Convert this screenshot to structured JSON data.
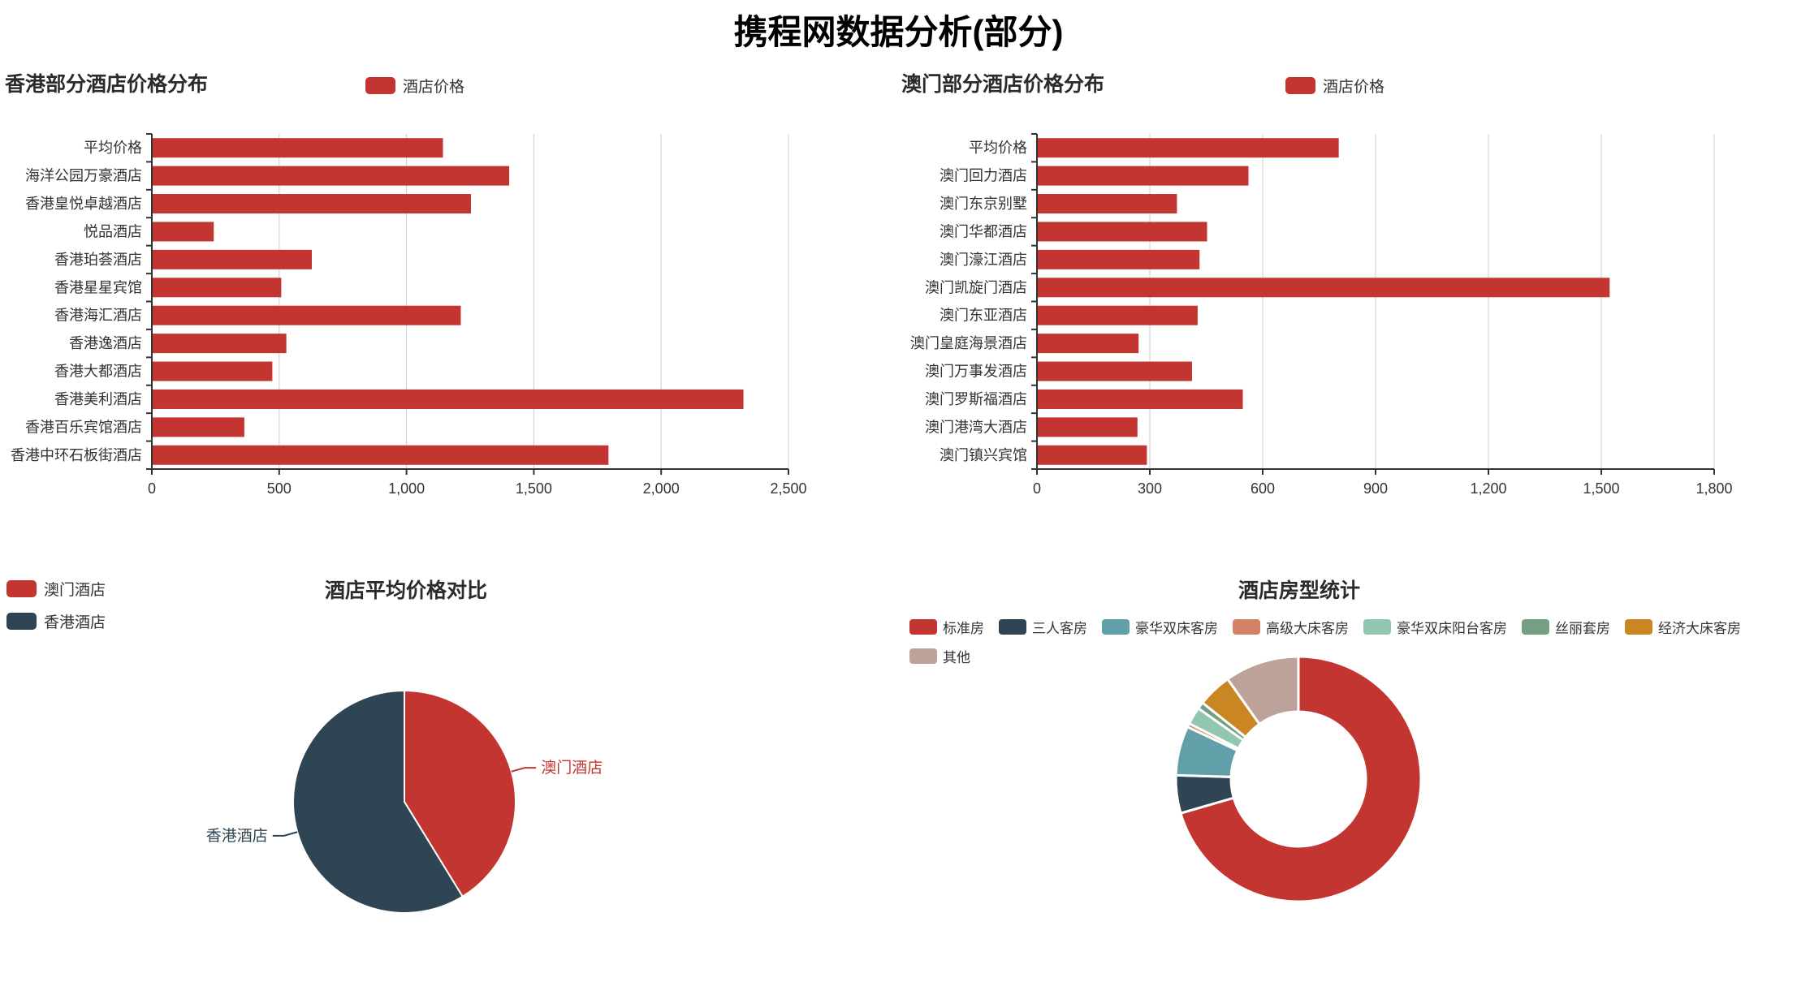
{
  "page": {
    "title": "携程网数据分析(部分)"
  },
  "chart_data": [
    {
      "type": "bar",
      "orientation": "horizontal",
      "title": "香港部分酒店价格分布",
      "legend": [
        "酒店价格"
      ],
      "legend_color": "#c23531",
      "bar_color": "#c23531",
      "categories": [
        "平均价格",
        "海洋公园万豪酒店",
        "香港皇悦卓越酒店",
        "悦品酒店",
        "香港珀荟酒店",
        "香港星星宾馆",
        "香港海汇酒店",
        "香港逸酒店",
        "香港大都酒店",
        "香港美利酒店",
        "香港百乐宾馆酒店",
        "香港中环石板街酒店"
      ],
      "values": [
        1140,
        1400,
        1250,
        240,
        625,
        505,
        1210,
        525,
        470,
        2320,
        360,
        1790
      ],
      "xlabel": "",
      "ylabel": "",
      "xlim": [
        0,
        2500
      ],
      "xticks": [
        0,
        500,
        1000,
        1500,
        2000,
        2500
      ],
      "grid": "vertical-lines"
    },
    {
      "type": "bar",
      "orientation": "horizontal",
      "title": "澳门部分酒店价格分布",
      "legend": [
        "酒店价格"
      ],
      "legend_color": "#c23531",
      "bar_color": "#c23531",
      "categories": [
        "平均价格",
        "澳门回力酒店",
        "澳门东京别墅",
        "澳门华都酒店",
        "澳门濠江酒店",
        "澳门凯旋门酒店",
        "澳门东亚酒店",
        "澳门皇庭海景酒店",
        "澳门万事发酒店",
        "澳门罗斯福酒店",
        "澳门港湾大酒店",
        "澳门镇兴宾馆"
      ],
      "values": [
        800,
        560,
        370,
        450,
        430,
        1520,
        425,
        268,
        410,
        545,
        265,
        290
      ],
      "xlabel": "",
      "ylabel": "",
      "xlim": [
        0,
        1800
      ],
      "xticks": [
        0,
        300,
        600,
        900,
        1200,
        1500,
        1800
      ],
      "grid": "vertical-lines"
    },
    {
      "type": "pie",
      "title": "酒店平均价格对比",
      "legend_position": "top-left",
      "labels_shown": true,
      "slices": [
        {
          "name": "澳门酒店",
          "value": 800,
          "color": "#c23531"
        },
        {
          "name": "香港酒店",
          "value": 1140,
          "color": "#2f4554"
        }
      ]
    },
    {
      "type": "donut",
      "title": "酒店房型统计",
      "legend_position": "top",
      "labels_shown": false,
      "unit": "percent",
      "slices": [
        {
          "name": "标准房",
          "value": 70.5,
          "color": "#c23531"
        },
        {
          "name": "三人客房",
          "value": 5.0,
          "color": "#2f4554"
        },
        {
          "name": "豪华双床客房",
          "value": 6.5,
          "color": "#61a0a8"
        },
        {
          "name": "高级大床客房",
          "value": 0.5,
          "color": "#d48265"
        },
        {
          "name": "豪华双床阳台客房",
          "value": 2.3,
          "color": "#91c7ae"
        },
        {
          "name": "丝丽套房",
          "value": 0.9,
          "color": "#749f83"
        },
        {
          "name": "经济大床客房",
          "value": 4.5,
          "color": "#ca8622"
        },
        {
          "name": "其他",
          "value": 9.8,
          "color": "#bda29a"
        }
      ]
    }
  ]
}
